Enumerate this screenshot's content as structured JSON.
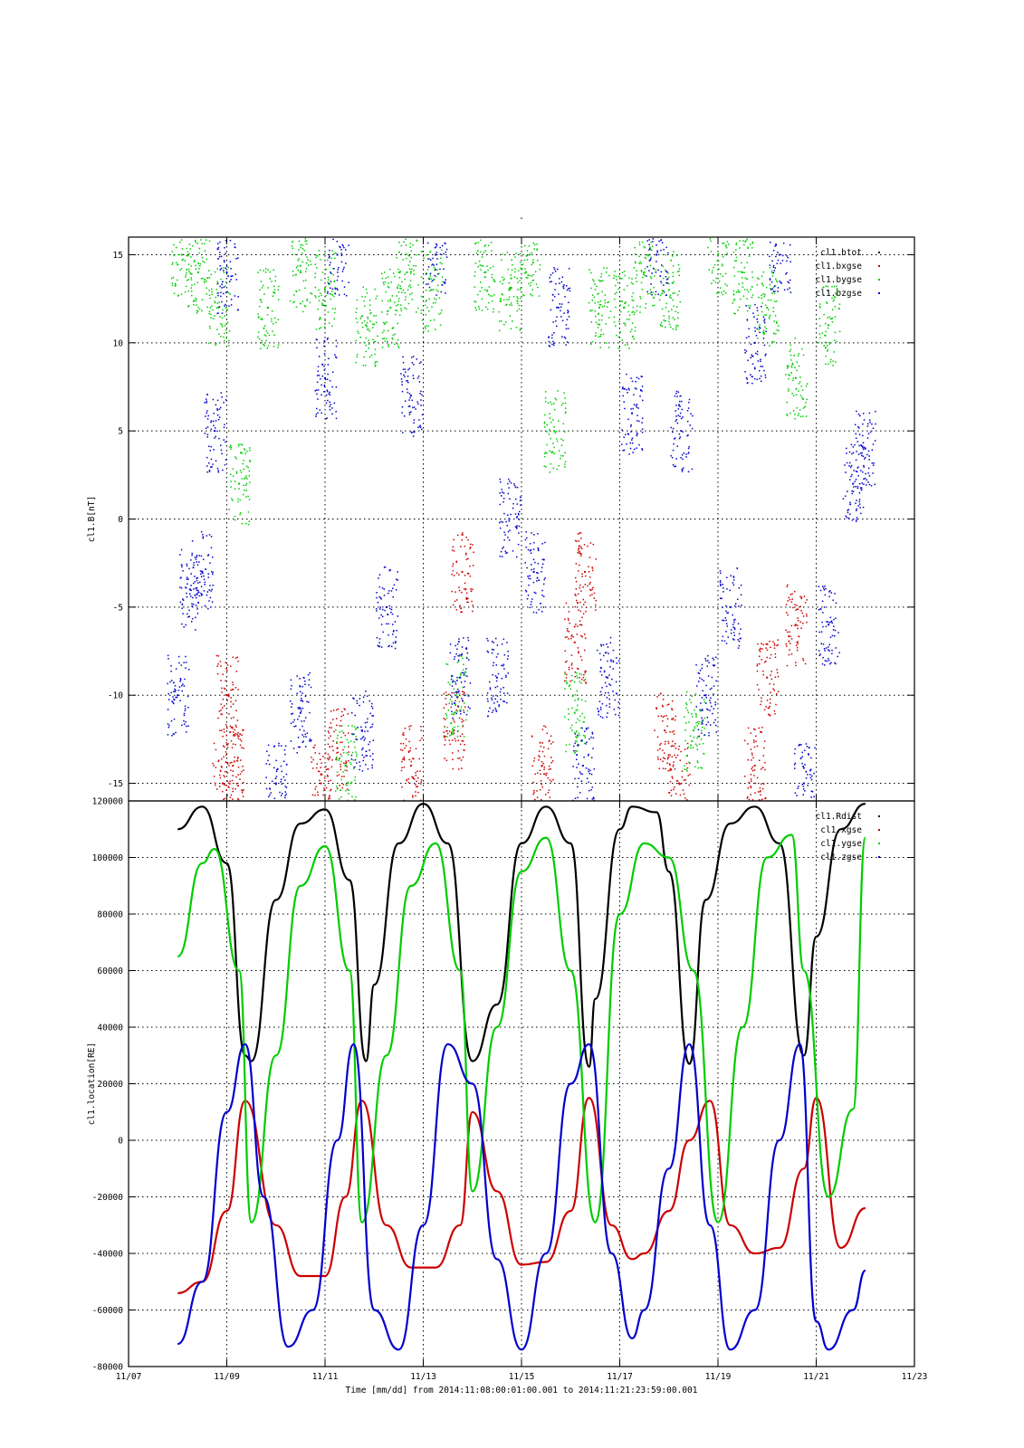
{
  "figure": {
    "top_title": "-",
    "xlabel": "Time [mm/dd]  from 2014:11:08:00:01:00.001  to  2014:11:21:23:59:00.001",
    "x_range": [
      "2014-11-07",
      "2014-11-23"
    ],
    "x_tick_labels": [
      "11/07",
      "11/09",
      "11/11",
      "11/13",
      "11/15",
      "11/17",
      "11/19",
      "11/21",
      "11/23"
    ],
    "x_tick_days": [
      7,
      9,
      11,
      13,
      15,
      17,
      19,
      21,
      23
    ]
  },
  "chart_data": [
    {
      "type": "scatter",
      "title": "",
      "ylabel": "cl1.B[nT]",
      "ylim": [
        -16,
        16
      ],
      "y_ticks": [
        -15,
        -10,
        -5,
        0,
        5,
        10,
        15
      ],
      "y_tick_labels": [
        "-15",
        "-10",
        "-5",
        "0",
        "5",
        "10",
        "15"
      ],
      "grid": true,
      "legend_position": "top-right",
      "series": [
        {
          "name": "cl1.btot",
          "color": "#000000",
          "x": [],
          "values": []
        },
        {
          "name": "cl1.bxgse",
          "color": "#cc0000",
          "x": [
            "11/08 22:00",
            "11/09 00:00",
            "11/09 03:00",
            "11/10 22:00",
            "11/11 06:00",
            "11/12 18:00",
            "11/13 15:00",
            "11/13 19:00",
            "11/15 10:00",
            "11/16 02:00",
            "11/16 07:00",
            "11/17 22:00",
            "11/18 05:00",
            "11/19 18:00",
            "11/20 00:00",
            "11/20 14:00"
          ],
          "values": [
            -15,
            -10,
            -14,
            -15,
            -13,
            -14,
            -12,
            -3,
            -14,
            -7,
            -3,
            -12,
            -15,
            -14,
            -9,
            -6
          ]
        },
        {
          "name": "cl1.bygse",
          "color": "#00cc00",
          "x": [
            "11/08 02:00",
            "11/08 10:00",
            "11/08 20:00",
            "11/09 06:00",
            "11/09 20:00",
            "11/10 12:00",
            "11/11 00:00",
            "11/11 10:00",
            "11/11 20:00",
            "11/12 08:00",
            "11/12 16:00",
            "11/13 04:00",
            "11/13 16:00",
            "11/14 06:00",
            "11/14 18:00",
            "11/15 04:00",
            "11/15 16:00",
            "11/16 02:00",
            "11/16 14:00",
            "11/17 02:00",
            "11/17 12:00",
            "11/18 00:00",
            "11/18 12:00",
            "11/19 00:00",
            "11/19 12:00",
            "11/20 00:00",
            "11/20 14:00",
            "11/21 06:00"
          ],
          "values": [
            15,
            14,
            12,
            2,
            12,
            14,
            13,
            -14,
            11,
            12,
            14,
            13,
            -10,
            14,
            13,
            15,
            5,
            -11,
            12,
            12,
            14,
            13,
            -12,
            15,
            14,
            12,
            8,
            11
          ]
        },
        {
          "name": "cl1.bzgse",
          "color": "#0000cc",
          "x": [
            "11/08 00:00",
            "11/08 06:00",
            "11/08 12:00",
            "11/08 18:00",
            "11/09 00:00",
            "11/10 00:00",
            "11/10 12:00",
            "11/11 00:00",
            "11/11 06:00",
            "11/11 18:00",
            "11/12 06:00",
            "11/12 18:00",
            "11/13 06:00",
            "11/13 18:00",
            "11/14 12:00",
            "11/14 18:00",
            "11/15 06:00",
            "11/15 18:00",
            "11/16 06:00",
            "11/16 18:00",
            "11/17 06:00",
            "11/17 18:00",
            "11/18 06:00",
            "11/18 18:00",
            "11/19 06:00",
            "11/19 18:00",
            "11/20 06:00",
            "11/20 18:00",
            "11/21 06:00",
            "11/21 18:00",
            "11/22 00:00"
          ],
          "values": [
            -10,
            -4,
            -3,
            5,
            14,
            -15,
            -11,
            8,
            15,
            -12,
            -5,
            7,
            15,
            -9,
            -9,
            0,
            -3,
            12,
            -14,
            -9,
            6,
            15,
            5,
            -10,
            -5,
            10,
            15,
            -15,
            -6,
            2,
            4
          ]
        }
      ]
    },
    {
      "type": "line",
      "title": "",
      "ylabel": "cl1.location[RE]",
      "ylim": [
        -80000,
        120000
      ],
      "y_ticks": [
        -80000,
        -60000,
        -40000,
        -20000,
        0,
        20000,
        40000,
        60000,
        80000,
        100000,
        120000
      ],
      "y_tick_labels": [
        "-80000",
        "-60000",
        "-40000",
        "-20000",
        "0",
        "20000",
        "40000",
        "60000",
        "80000",
        "100000",
        "120000"
      ],
      "grid": true,
      "legend_position": "top-right",
      "series": [
        {
          "name": "cl1.Rdist",
          "color": "#000000",
          "x": [
            "11/08 00:00",
            "11/08 12:00",
            "11/09 00:00",
            "11/09 09:00",
            "11/09 12:00",
            "11/10 00:00",
            "11/10 12:00",
            "11/11 00:00",
            "11/11 12:00",
            "11/11 20:00",
            "11/12 00:00",
            "11/12 12:00",
            "11/13 00:00",
            "11/13 12:00",
            "11/14 00:00",
            "11/14 12:00",
            "11/15 00:00",
            "11/15 12:00",
            "11/16 00:00",
            "11/16 09:00",
            "11/16 12:00",
            "11/17 00:00",
            "11/17 06:00",
            "11/17 18:00",
            "11/18 00:00",
            "11/18 10:00",
            "11/18 18:00",
            "11/19 06:00",
            "11/19 18:00",
            "11/20 06:00",
            "11/20 18:00",
            "11/21 00:00",
            "11/21 12:00",
            "11/22 00:00"
          ],
          "values": [
            110000,
            118000,
            98000,
            30000,
            28000,
            85000,
            112000,
            117000,
            92000,
            28000,
            55000,
            105000,
            119000,
            105000,
            28000,
            48000,
            105000,
            118000,
            105000,
            26000,
            50000,
            110000,
            118000,
            116000,
            95000,
            27000,
            85000,
            112000,
            118000,
            105000,
            30000,
            72000,
            110000,
            119000
          ]
        },
        {
          "name": "cl1.xgse",
          "color": "#cc0000",
          "x": [
            "11/08 00:00",
            "11/08 12:00",
            "11/09 00:00",
            "11/09 09:00",
            "11/10 00:00",
            "11/10 12:00",
            "11/11 00:00",
            "11/11 10:00",
            "11/11 18:00",
            "11/12 06:00",
            "11/12 18:00",
            "11/13 06:00",
            "11/13 18:00",
            "11/14 00:00",
            "11/14 12:00",
            "11/15 00:00",
            "11/15 12:00",
            "11/16 00:00",
            "11/16 09:00",
            "11/16 20:00",
            "11/17 06:00",
            "11/17 12:00",
            "11/18 00:00",
            "11/18 10:00",
            "11/18 20:00",
            "11/19 06:00",
            "11/19 18:00",
            "11/20 06:00",
            "11/20 18:00",
            "11/21 00:00",
            "11/21 12:00",
            "11/22 00:00"
          ],
          "values": [
            -54000,
            -50000,
            -25000,
            14000,
            -30000,
            -48000,
            -48000,
            -20000,
            14000,
            -30000,
            -45000,
            -45000,
            -30000,
            10000,
            -18000,
            -44000,
            -43000,
            -25000,
            15000,
            -30000,
            -42000,
            -40000,
            -25000,
            0,
            14000,
            -30000,
            -40000,
            -38000,
            -10000,
            15000,
            -38000,
            -24000
          ]
        },
        {
          "name": "cl1.ygse",
          "color": "#00cc00",
          "x": [
            "11/08 00:00",
            "11/08 12:00",
            "11/08 18:00",
            "11/09 06:00",
            "11/09 12:00",
            "11/10 00:00",
            "11/10 12:00",
            "11/11 00:00",
            "11/11 12:00",
            "11/11 18:00",
            "11/12 06:00",
            "11/12 18:00",
            "11/13 06:00",
            "11/13 18:00",
            "11/14 00:00",
            "11/14 12:00",
            "11/15 00:00",
            "11/15 12:00",
            "11/16 00:00",
            "11/16 12:00",
            "11/17 00:00",
            "11/17 12:00",
            "11/18 00:00",
            "11/18 12:00",
            "11/19 00:00",
            "11/19 12:00",
            "11/20 00:00",
            "11/20 12:00",
            "11/20 18:00",
            "11/21 06:00",
            "11/21 18:00",
            "11/22 00:00"
          ],
          "values": [
            65000,
            98000,
            103000,
            60000,
            -29000,
            30000,
            90000,
            104000,
            60000,
            -29000,
            30000,
            90000,
            105000,
            60000,
            -18000,
            40000,
            95000,
            107000,
            60000,
            -29000,
            80000,
            105000,
            100000,
            60000,
            -29000,
            40000,
            100000,
            108000,
            60000,
            -20000,
            11000,
            107000
          ]
        },
        {
          "name": "cl1.zgse",
          "color": "#0000cc",
          "x": [
            "11/08 00:00",
            "11/08 12:00",
            "11/09 00:00",
            "11/09 09:00",
            "11/09 18:00",
            "11/10 06:00",
            "11/10 18:00",
            "11/11 06:00",
            "11/11 14:00",
            "11/12 00:00",
            "11/12 12:00",
            "11/13 00:00",
            "11/13 12:00",
            "11/14 00:00",
            "11/14 12:00",
            "11/15 00:00",
            "11/15 12:00",
            "11/16 00:00",
            "11/16 09:00",
            "11/16 20:00",
            "11/17 06:00",
            "11/17 12:00",
            "11/18 00:00",
            "11/18 10:00",
            "11/18 20:00",
            "11/19 06:00",
            "11/19 18:00",
            "11/20 06:00",
            "11/20 16:00",
            "11/21 00:00",
            "11/21 06:00",
            "11/21 18:00",
            "11/22 00:00"
          ],
          "values": [
            -72000,
            -50000,
            10000,
            34000,
            -20000,
            -73000,
            -60000,
            0,
            34000,
            -60000,
            -74000,
            -30000,
            34000,
            20000,
            -42000,
            -74000,
            -40000,
            20000,
            34000,
            -40000,
            -70000,
            -60000,
            -10000,
            34000,
            -30000,
            -74000,
            -60000,
            0,
            34000,
            -64000,
            -74000,
            -60000,
            -46000
          ]
        }
      ]
    }
  ]
}
